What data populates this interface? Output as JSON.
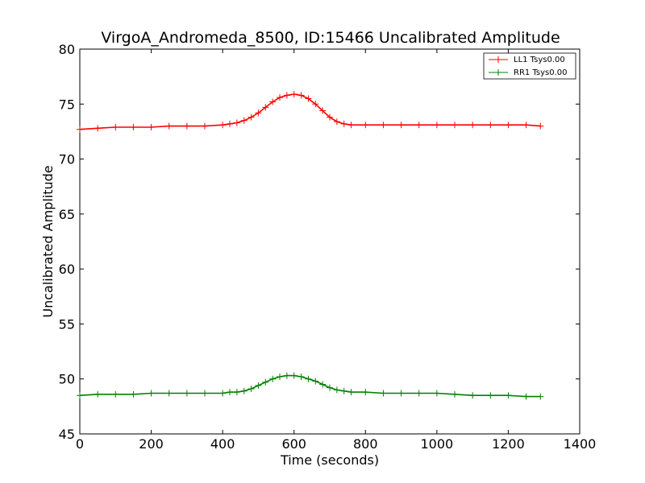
{
  "chart_data": {
    "type": "line",
    "title": "VirgoA_Andromeda_8500, ID:15466 Uncalibrated Amplitude",
    "xlabel": "Time (seconds)",
    "ylabel": "Uncalibrated Amplitude",
    "xlim": [
      0,
      1400
    ],
    "ylim": [
      45,
      80
    ],
    "x_ticks": [
      "0",
      "200",
      "400",
      "600",
      "800",
      "1000",
      "1200",
      "1400"
    ],
    "y_ticks": [
      "45",
      "50",
      "55",
      "60",
      "65",
      "70",
      "75",
      "80"
    ],
    "grid": false,
    "legend_position": "top-right",
    "marker": "+",
    "series": [
      {
        "name": "LL1 Tsys0.00",
        "color": "#ff0000",
        "x": [
          0,
          50,
          100,
          150,
          200,
          250,
          300,
          350,
          400,
          420,
          440,
          460,
          480,
          500,
          520,
          540,
          560,
          580,
          600,
          620,
          640,
          660,
          680,
          700,
          720,
          740,
          760,
          800,
          850,
          900,
          950,
          1000,
          1050,
          1100,
          1150,
          1200,
          1250,
          1290
        ],
        "y": [
          72.7,
          72.8,
          72.9,
          72.9,
          72.9,
          73.0,
          73.0,
          73.0,
          73.1,
          73.2,
          73.3,
          73.5,
          73.8,
          74.2,
          74.7,
          75.2,
          75.6,
          75.8,
          75.9,
          75.8,
          75.5,
          75.0,
          74.4,
          73.8,
          73.4,
          73.2,
          73.1,
          73.1,
          73.1,
          73.1,
          73.1,
          73.1,
          73.1,
          73.1,
          73.1,
          73.1,
          73.1,
          73.0
        ]
      },
      {
        "name": "RR1 Tsys0.00",
        "color": "#008000",
        "x": [
          0,
          50,
          100,
          150,
          200,
          250,
          300,
          350,
          400,
          420,
          440,
          460,
          480,
          500,
          520,
          540,
          560,
          580,
          600,
          620,
          640,
          660,
          680,
          700,
          720,
          740,
          760,
          800,
          850,
          900,
          950,
          1000,
          1050,
          1100,
          1150,
          1200,
          1250,
          1290
        ],
        "y": [
          48.5,
          48.6,
          48.6,
          48.6,
          48.7,
          48.7,
          48.7,
          48.7,
          48.7,
          48.8,
          48.8,
          48.9,
          49.1,
          49.4,
          49.7,
          50.0,
          50.2,
          50.3,
          50.3,
          50.2,
          50.0,
          49.8,
          49.5,
          49.2,
          49.0,
          48.9,
          48.8,
          48.8,
          48.7,
          48.7,
          48.7,
          48.7,
          48.6,
          48.5,
          48.5,
          48.5,
          48.4,
          48.4
        ]
      }
    ]
  }
}
